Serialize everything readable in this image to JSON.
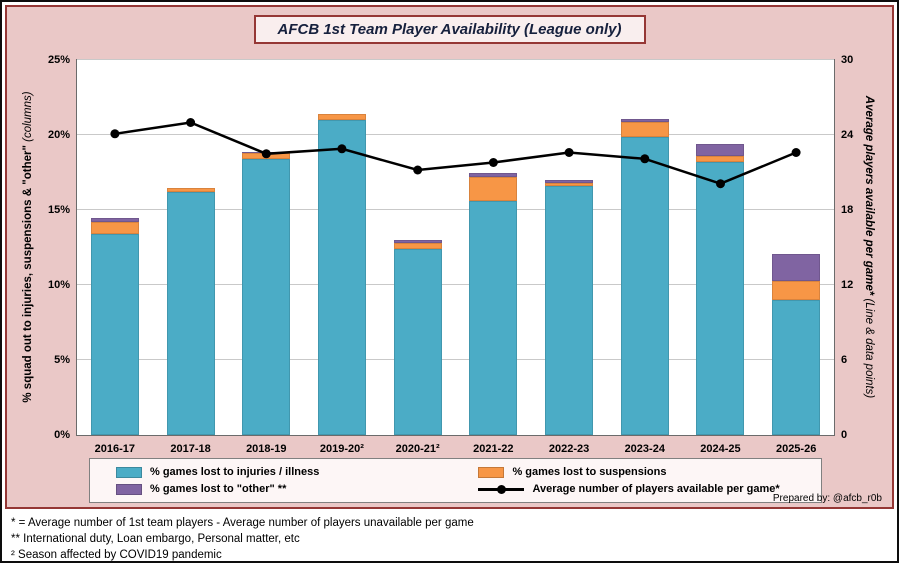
{
  "chart": {
    "title": "AFCB 1st Team Player Availability (League only)",
    "prepared_by": "Prepared by: @afcb_r0b",
    "axis_left_main": "% squad out to injuries, suspensions & \"other\"",
    "axis_left_note": "(columns)",
    "axis_right_main": "Average players available per game*",
    "axis_right_note": "(Line & data points)"
  },
  "chart_data": {
    "type": "combo (stacked columns + line on secondary axis)",
    "title": "AFCB 1st Team Player Availability (League only)",
    "categories": [
      "2016-17",
      "2017-18",
      "2018-19",
      "2019-20²",
      "2020-21²",
      "2021-22",
      "2022-23",
      "2023-24",
      "2024-25",
      "2025-26"
    ],
    "series": [
      {
        "name": "% games lost to injuries / illness",
        "kind": "column",
        "axis": "left",
        "color": "#4bacc6",
        "values": [
          13.4,
          16.2,
          18.4,
          21.0,
          12.4,
          15.6,
          16.6,
          19.9,
          18.2,
          9.0
        ]
      },
      {
        "name": "% games lost to suspensions",
        "kind": "column",
        "axis": "left",
        "color": "#f79646",
        "values": [
          0.8,
          0.3,
          0.4,
          0.4,
          0.4,
          1.6,
          0.2,
          1.0,
          0.4,
          1.3
        ]
      },
      {
        "name": "% games lost to \"other\" **",
        "kind": "column",
        "axis": "left",
        "color": "#8064a2",
        "values": [
          0.3,
          0.0,
          0.1,
          0.0,
          0.2,
          0.3,
          0.2,
          0.2,
          0.8,
          1.8
        ]
      },
      {
        "name": "Average number of players available per game*",
        "kind": "line",
        "axis": "right",
        "color": "#000000",
        "values": [
          24.1,
          25.0,
          22.5,
          22.9,
          21.2,
          21.8,
          22.6,
          22.1,
          20.1,
          22.6
        ]
      }
    ],
    "left_axis": {
      "label": "% squad out to injuries, suspensions & \"other\" (columns)",
      "max": 25,
      "values": [
        0,
        5,
        10,
        15,
        20,
        25
      ],
      "ticks": [
        "0%",
        "5%",
        "10%",
        "15%",
        "20%",
        "25%"
      ]
    },
    "right_axis": {
      "label": "Average players available per game* (Line & data points)",
      "max": 30,
      "values": [
        0,
        6,
        12,
        18,
        24,
        30
      ],
      "ticks": [
        "0",
        "6",
        "12",
        "18",
        "24",
        "30"
      ]
    },
    "grid": true,
    "legend_position": "bottom"
  },
  "legend": {
    "items": [
      {
        "label": "% games lost to injuries / illness"
      },
      {
        "label": "% games lost to suspensions"
      },
      {
        "label": "% games lost to \"other\" **"
      },
      {
        "label": "Average number of players available per game*"
      }
    ]
  },
  "footnotes": {
    "line1": "* = Average number of 1st team players - Average number of players unavailable per game",
    "line2": "** International duty, Loan embargo, Personal matter, etc",
    "line3": "² Season affected by COVID19 pandemic"
  },
  "colors": {
    "injuries": "#4bacc6",
    "suspensions": "#f79646",
    "other": "#8064a2",
    "line": "#000000",
    "panel_bg": "#eac8c7",
    "panel_border": "#953735"
  }
}
